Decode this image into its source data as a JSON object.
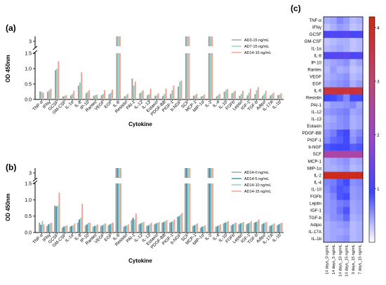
{
  "panels": [
    {
      "id": "a",
      "panel_label": "(a)",
      "chart_data": {
        "type": "bar",
        "xlabel": "Cytokine",
        "ylabel": "OD 450nm",
        "ylim": [
          0,
          3.2
        ],
        "axis_break": [
          1.5,
          2.8
        ],
        "yticks_lower": [
          "0.0",
          "0.5",
          "1.0",
          "1.5"
        ],
        "yticks_upper": [
          "3"
        ],
        "categories": [
          "TNF-α",
          "IFNγ",
          "GCSF",
          "GM-CSF",
          "IL-1α",
          "IL-8",
          "IP-10",
          "Rantes",
          "VEGF",
          "EGF",
          "IL-6",
          "Resistin",
          "PAI-1",
          "IL-12",
          "IL-13",
          "Eotaxin",
          "PDGF-BB",
          "PIGF-1",
          "b-NGF",
          "SCF",
          "MCP-1",
          "MIP-1α",
          "IL-2",
          "IL-4",
          "IL-10",
          "FGFb",
          "Leptin",
          "IGF-1",
          "TGF-b",
          "Adipo",
          "IL-17A",
          "IL-1b"
        ],
        "legend_position": "top-right",
        "series": [
          {
            "name": "AD3-15 ng/mL",
            "color": "#9e9e9e",
            "values": [
              0.26,
              0.25,
              0.95,
              0.1,
              0.13,
              0.45,
              0.2,
              0.12,
              0.14,
              0.17,
              3.2,
              0.1,
              0.68,
              0.2,
              0.14,
              0.12,
              0.12,
              0.18,
              0.42,
              3.2,
              0.12,
              0.1,
              3.2,
              0.1,
              0.25,
              0.2,
              0.12,
              0.13,
              0.17,
              0.12,
              0.13,
              0.14
            ]
          },
          {
            "name": "AD7-15 ng/mL",
            "color": "#8fd0c5",
            "values": [
              0.24,
              0.3,
              1.0,
              0.12,
              0.18,
              0.55,
              0.25,
              0.14,
              0.18,
              0.22,
              3.2,
              0.13,
              0.45,
              0.25,
              0.18,
              0.14,
              0.18,
              0.3,
              0.58,
              3.2,
              0.14,
              0.12,
              3.2,
              0.14,
              0.3,
              0.24,
              0.18,
              0.22,
              0.3,
              0.18,
              0.17,
              0.16
            ]
          },
          {
            "name": "AD14-15 ng/mL",
            "color": "#f0a08f",
            "values": [
              0.22,
              0.35,
              1.24,
              0.14,
              0.28,
              0.88,
              0.3,
              0.16,
              0.3,
              0.32,
              3.2,
              0.18,
              0.58,
              0.3,
              0.35,
              0.2,
              0.35,
              0.45,
              0.62,
              3.2,
              0.18,
              0.16,
              3.2,
              0.18,
              0.34,
              0.28,
              0.28,
              0.35,
              0.4,
              0.28,
              0.22,
              0.2
            ]
          }
        ]
      }
    },
    {
      "id": "b",
      "panel_label": "(b)",
      "chart_data": {
        "type": "bar",
        "xlabel": "Cytokine",
        "ylabel": "OD 450nm",
        "ylim": [
          0,
          3.2
        ],
        "axis_break": [
          1.5,
          2.8
        ],
        "yticks_lower": [
          "0.0",
          "0.5",
          "1.0",
          "1.5"
        ],
        "yticks_upper": [
          "3"
        ],
        "categories": [
          "TNF-α",
          "IFNγ",
          "GCSF",
          "GM-CSF",
          "IL-1α",
          "IL-8",
          "IP-10",
          "Rantes",
          "VEGF",
          "EGF",
          "IL-6",
          "Resistin",
          "PAI-1",
          "IL-12",
          "IL-13",
          "Eotaxin",
          "PDGF-BB",
          "PIGF-1",
          "b-NGF",
          "SCF",
          "MCP-1",
          "MIP-1α",
          "IL-2",
          "IL-4",
          "IL-10",
          "FGFb",
          "Leptin",
          "IGF-1",
          "TGF-b",
          "Adipo",
          "IL-17A",
          "IL-1b"
        ],
        "legend_position": "top-right",
        "series": [
          {
            "name": "AD14-0 ng/mL",
            "color": "#9e9e9e",
            "values": [
              0.3,
              0.2,
              0.82,
              0.15,
              0.18,
              0.3,
              0.22,
              0.18,
              0.2,
              0.22,
              3.2,
              0.18,
              0.38,
              0.25,
              0.2,
              0.25,
              0.3,
              0.3,
              0.48,
              3.2,
              0.2,
              0.15,
              3.2,
              0.18,
              0.28,
              0.22,
              0.25,
              0.25,
              0.3,
              0.25,
              0.2,
              0.22
            ]
          },
          {
            "name": "AD14-5 ng/mL",
            "color": "#3a8fb0",
            "values": [
              0.24,
              0.25,
              0.8,
              0.18,
              0.2,
              0.4,
              0.25,
              0.2,
              0.22,
              0.25,
              3.2,
              0.2,
              0.45,
              0.28,
              0.22,
              0.28,
              0.32,
              0.32,
              0.5,
              3.2,
              0.22,
              0.18,
              3.2,
              0.2,
              0.3,
              0.25,
              0.28,
              0.28,
              0.32,
              0.28,
              0.22,
              0.25
            ]
          },
          {
            "name": "AD14-10 ng/mL",
            "color": "#8fd0c5",
            "values": [
              0.35,
              0.28,
              0.82,
              0.2,
              0.22,
              0.45,
              0.3,
              0.22,
              0.25,
              0.28,
              3.2,
              0.22,
              0.4,
              0.3,
              0.25,
              0.3,
              0.35,
              0.35,
              0.55,
              3.2,
              0.25,
              0.2,
              3.2,
              0.22,
              0.32,
              0.28,
              0.3,
              0.3,
              0.35,
              0.3,
              0.25,
              0.28
            ]
          },
          {
            "name": "AD14-15 ng/mL",
            "color": "#f0a08f",
            "values": [
              0.25,
              0.3,
              1.22,
              0.22,
              0.28,
              0.88,
              0.3,
              0.25,
              0.28,
              0.3,
              3.2,
              0.25,
              0.58,
              0.32,
              0.3,
              0.32,
              0.38,
              0.4,
              0.6,
              3.2,
              0.28,
              0.22,
              3.2,
              0.25,
              0.35,
              0.3,
              0.32,
              0.35,
              0.4,
              0.32,
              0.28,
              0.3
            ]
          }
        ]
      }
    },
    {
      "id": "c",
      "panel_label": "(c)",
      "chart_data": {
        "type": "heatmap",
        "rows": [
          "TNF-α",
          "IFNγ",
          "GCSF",
          "GM-CSF",
          "IL-1α",
          "IL-8",
          "IP-10",
          "Rantes",
          "VEGF",
          "EGF",
          "IL-6",
          "Resistin",
          "PAI-1",
          "IL-12",
          "IL-13",
          "Eotaxin",
          "PDGF-BB",
          "PIGF-1",
          "b-NGF",
          "SCF",
          "MCP-1",
          "MIP-1α",
          "IL-2",
          "IL-4",
          "IL-10",
          "FGFb",
          "Leptin",
          "IGF-1",
          "TGF-b",
          "Adipo",
          "IL-17A",
          "IL-1b"
        ],
        "columns": [
          "14 days_0 ng/mL",
          "14 days_5 ng/mL",
          "14 days_10 ng/mL",
          "14 days_15 ng/mL",
          "3 days_15 ng/mL",
          "7 days_15 ng/mL"
        ],
        "colorbar_ticks": [
          "1",
          "2",
          "3",
          "4"
        ],
        "color_range": [
          0,
          4.2
        ],
        "values": [
          [
            0.4,
            0.45,
            0.6,
            0.5,
            0.35,
            0.4
          ],
          [
            0.3,
            0.4,
            0.5,
            0.45,
            0.3,
            0.35
          ],
          [
            1.1,
            1.15,
            1.1,
            1.25,
            1.05,
            1.1
          ],
          [
            0.3,
            0.35,
            0.4,
            0.4,
            0.3,
            0.35
          ],
          [
            0.35,
            0.4,
            0.45,
            0.4,
            0.3,
            0.35
          ],
          [
            1.15,
            1.2,
            1.2,
            1.3,
            1.1,
            1.15
          ],
          [
            0.4,
            0.45,
            0.5,
            0.55,
            0.35,
            0.45
          ],
          [
            0.35,
            0.5,
            0.4,
            0.45,
            0.3,
            0.35
          ],
          [
            0.4,
            0.45,
            0.5,
            0.55,
            0.35,
            0.4
          ],
          [
            0.45,
            0.5,
            0.55,
            0.6,
            0.4,
            0.5
          ],
          [
            3.7,
            3.7,
            3.75,
            3.7,
            3.8,
            3.7
          ],
          [
            0.95,
            0.9,
            0.8,
            0.6,
            0.9,
            0.9
          ],
          [
            0.4,
            0.5,
            0.5,
            0.55,
            0.6,
            0.45
          ],
          [
            0.5,
            0.55,
            0.6,
            0.65,
            0.45,
            0.5
          ],
          [
            0.4,
            0.45,
            0.55,
            0.6,
            0.4,
            0.45
          ],
          [
            0.45,
            0.5,
            0.55,
            0.6,
            0.4,
            0.45
          ],
          [
            0.55,
            0.65,
            0.85,
            1.0,
            0.5,
            0.6
          ],
          [
            0.6,
            0.75,
            0.8,
            0.9,
            0.55,
            0.7
          ],
          [
            0.85,
            0.9,
            0.95,
            1.0,
            0.8,
            0.85
          ],
          [
            2.4,
            2.4,
            2.4,
            2.4,
            2.4,
            2.4
          ],
          [
            0.4,
            0.45,
            0.5,
            0.55,
            0.4,
            0.45
          ],
          [
            0.4,
            0.4,
            0.45,
            0.5,
            0.35,
            0.4
          ],
          [
            4.1,
            4.1,
            4.1,
            4.1,
            4.1,
            4.1
          ],
          [
            0.6,
            0.65,
            0.8,
            0.9,
            0.55,
            0.6
          ],
          [
            0.55,
            0.7,
            0.85,
            0.8,
            0.5,
            0.55
          ],
          [
            0.5,
            0.6,
            0.85,
            0.9,
            0.5,
            0.55
          ],
          [
            0.5,
            0.55,
            0.65,
            0.7,
            0.45,
            0.5
          ],
          [
            0.5,
            0.55,
            0.7,
            0.85,
            0.45,
            0.5
          ],
          [
            0.45,
            0.55,
            0.6,
            0.75,
            0.4,
            0.45
          ],
          [
            0.4,
            0.45,
            0.5,
            0.55,
            0.35,
            0.4
          ],
          [
            0.4,
            0.45,
            0.45,
            0.5,
            0.35,
            0.4
          ],
          [
            0.4,
            0.45,
            0.5,
            0.55,
            0.35,
            0.4
          ]
        ]
      }
    }
  ]
}
